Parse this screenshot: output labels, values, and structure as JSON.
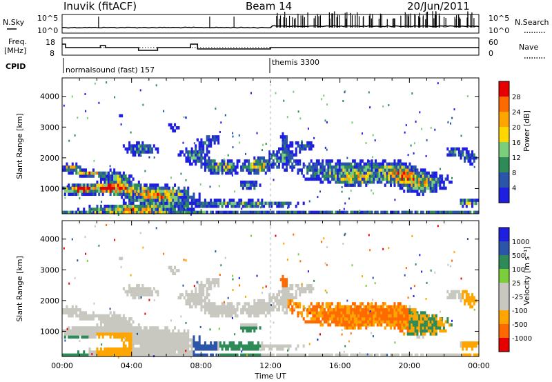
{
  "header": {
    "station": "Inuvik (fitACF)",
    "beam": "Beam 14",
    "date": "20/Jun/2011"
  },
  "noise_panel": {
    "left_label": "N.Sky",
    "right_label": "N.Search",
    "left_ticks": [
      "10^5",
      "10^0"
    ],
    "right_ticks": [
      "10^5",
      "10^0"
    ]
  },
  "freq_panel": {
    "left_label_1": "Freq.",
    "left_label_2": "[MHz]",
    "right_label": "Nave",
    "left_ticks": [
      "18",
      "8"
    ],
    "right_ticks": [
      "60",
      "0"
    ]
  },
  "cpid": {
    "label": "CPID",
    "segments": [
      {
        "name": "normalsound (fast) 157",
        "start_hour": 0,
        "end_hour": 12
      },
      {
        "name": "themis 3300",
        "start_hour": 12,
        "end_hour": 24
      }
    ]
  },
  "colors": {
    "power": [
      "#1f1fe0",
      "#2a55a8",
      "#2e8b57",
      "#7ccd7c",
      "#ffd700",
      "#ffa500",
      "#ff6a00",
      "#e60000"
    ],
    "velocity": [
      "#e60000",
      "#ff6a00",
      "#ffa500",
      "#c8c8c0",
      "#c8c8c0",
      "#7ccd3c",
      "#2e8b57",
      "#2a55a8",
      "#1f1fe0"
    ]
  },
  "chart_data": [
    {
      "type": "heatmap",
      "panel": "power",
      "xlabel": "Time UT",
      "ylabel": "Slant Range [km]",
      "x_ticks": [
        "00:00",
        "04:00",
        "08:00",
        "12:00",
        "16:00",
        "20:00",
        "00:00"
      ],
      "y_ticks": [
        "1000",
        "2000",
        "3000",
        "4000"
      ],
      "xlim": [
        0,
        24
      ],
      "ylim": [
        180,
        4600
      ],
      "colorbar": {
        "label": "Power [dB]",
        "ticks": [
          "28",
          "24",
          "20",
          "16",
          "12",
          "8",
          "4"
        ],
        "range": [
          0,
          30
        ]
      }
    },
    {
      "type": "heatmap",
      "panel": "velocity",
      "xlabel": "Time UT",
      "ylabel": "Slant Range [km]",
      "x_ticks": [
        "00:00",
        "04:00",
        "08:00",
        "12:00",
        "16:00",
        "20:00",
        "00:00"
      ],
      "y_ticks": [
        "1000",
        "2000",
        "3000",
        "4000"
      ],
      "xlim": [
        0,
        24
      ],
      "ylim": [
        180,
        4600
      ],
      "colorbar": {
        "label": "Velocity [m s⁻¹]",
        "ticks": [
          "1000",
          "500",
          "100",
          "25",
          "-25",
          "-100",
          "-500",
          "-1000"
        ]
      }
    }
  ]
}
